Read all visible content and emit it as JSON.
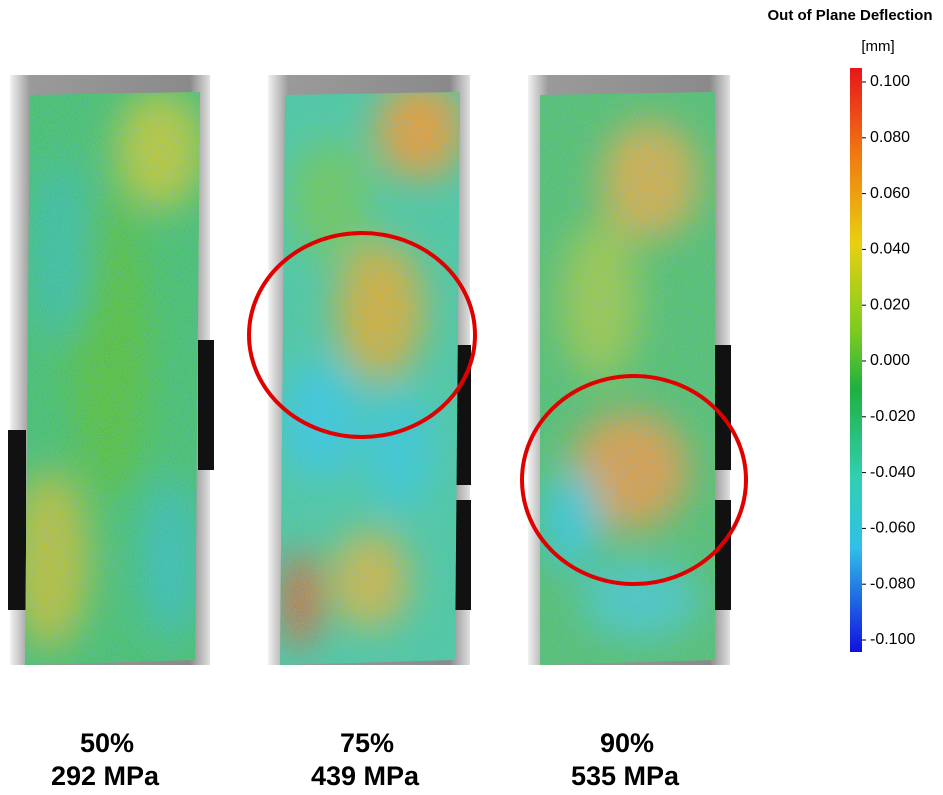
{
  "colorbar": {
    "title": "Out of Plane Deflection",
    "unit": "[mm]",
    "ticks": [
      "0.100",
      "0.080",
      "0.060",
      "0.040",
      "0.020",
      "0.000",
      "-0.020",
      "-0.040",
      "-0.060",
      "-0.080",
      "-0.100"
    ]
  },
  "panels": [
    {
      "percent": "50%",
      "stress": "292 MPa"
    },
    {
      "percent": "75%",
      "stress": "439 MPa"
    },
    {
      "percent": "90%",
      "stress": "535 MPa"
    }
  ]
}
